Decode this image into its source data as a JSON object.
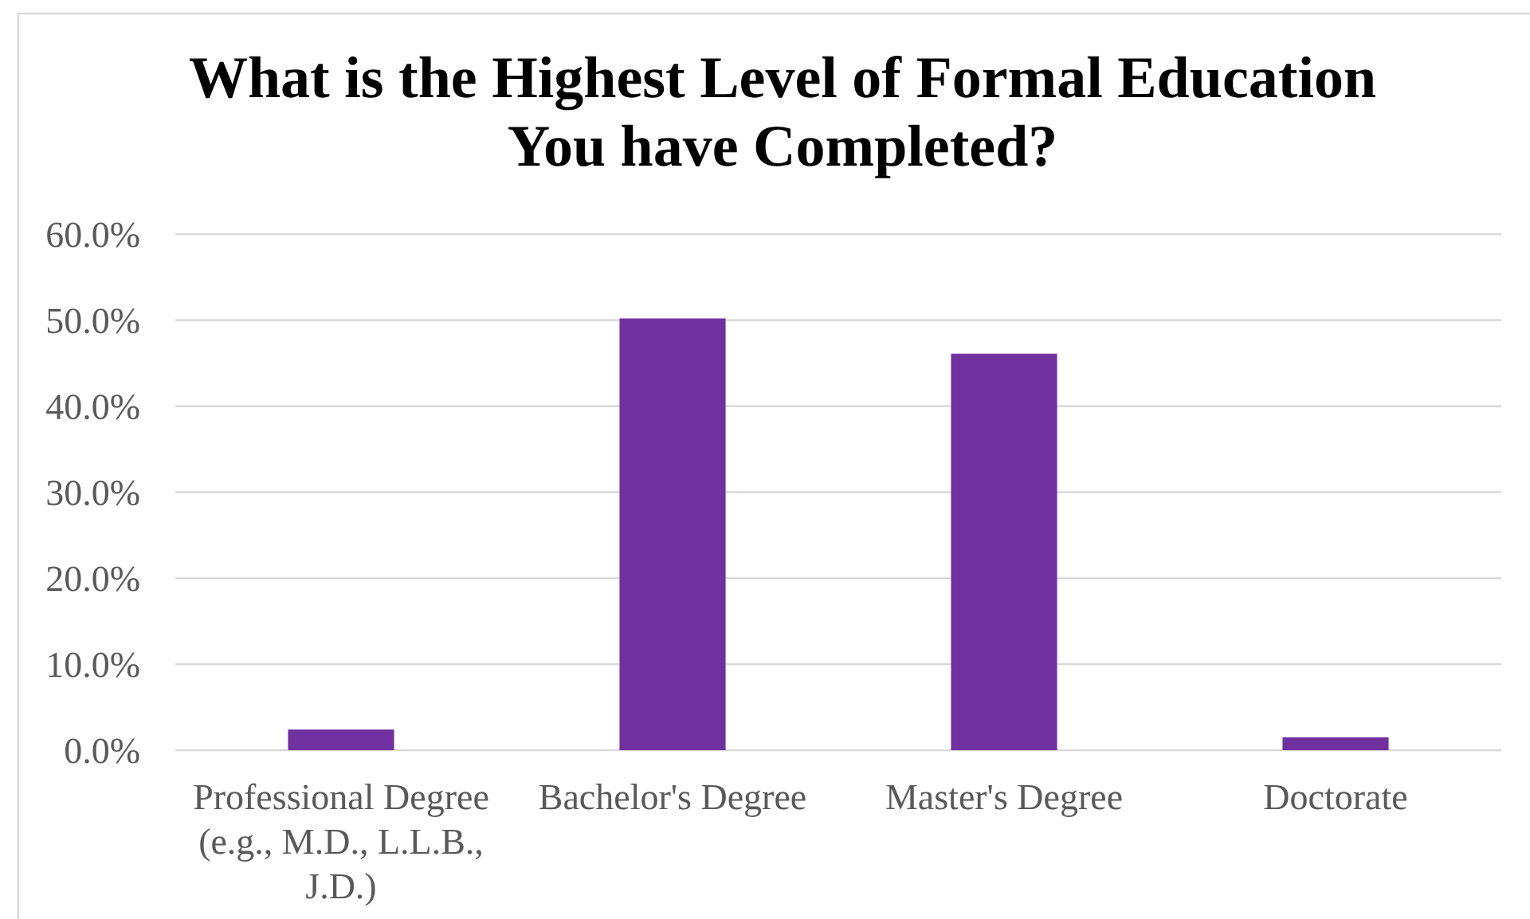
{
  "chart_data": {
    "type": "bar",
    "title": "What is the Highest Level of Formal Education You have Completed?",
    "categories": [
      "Professional Degree (e.g., M.D., L.L.B., J.D.)",
      "Bachelor's Degree",
      "Master's Degree",
      "Doctorate"
    ],
    "values": [
      2.4,
      50.2,
      46.1,
      1.5
    ],
    "color": "#7030a0",
    "ylim": [
      0,
      60
    ],
    "yticks": [
      {
        "value": 0,
        "label": "0.0%"
      },
      {
        "value": 10,
        "label": "10.0%"
      },
      {
        "value": 20,
        "label": "20.0%"
      },
      {
        "value": 30,
        "label": "30.0%"
      },
      {
        "value": 40,
        "label": "40.0%"
      },
      {
        "value": 50,
        "label": "50.0%"
      },
      {
        "value": 60,
        "label": "60.0%"
      }
    ],
    "grid": "y"
  }
}
